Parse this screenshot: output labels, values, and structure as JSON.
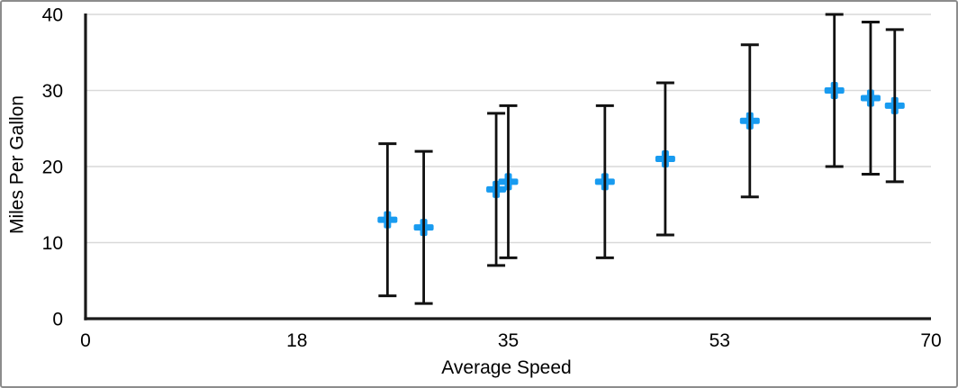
{
  "frame": {
    "background": "#ffffff",
    "border_color": "#8c8c8c"
  },
  "chart_data": {
    "type": "scatter",
    "title": "",
    "xlabel": "Average Speed",
    "ylabel": "Miles Per Gallon",
    "xlim": [
      0,
      70
    ],
    "ylim": [
      0,
      40
    ],
    "x_ticks": [
      {
        "pos": 0,
        "label": "0"
      },
      {
        "pos": 17.5,
        "label": "18"
      },
      {
        "pos": 35,
        "label": "35"
      },
      {
        "pos": 52.5,
        "label": "53"
      },
      {
        "pos": 70,
        "label": "70"
      }
    ],
    "y_ticks": [
      {
        "pos": 0,
        "label": "0"
      },
      {
        "pos": 10,
        "label": "10"
      },
      {
        "pos": 20,
        "label": "20"
      },
      {
        "pos": 30,
        "label": "30"
      },
      {
        "pos": 40,
        "label": "40"
      }
    ],
    "grid": "horizontal-only",
    "legend": "none",
    "axis_color": "#1a1a1a",
    "gridline_color": "#d9d9d9",
    "text_color": "#000000",
    "series": [
      {
        "name": "Miles Per Gallon",
        "marker": "plus",
        "marker_color": "#189BF0",
        "error_bars": {
          "direction": "y",
          "plus": 10,
          "minus": 10,
          "color": "#111111"
        },
        "points": [
          {
            "x": 25,
            "y": 13
          },
          {
            "x": 28,
            "y": 12
          },
          {
            "x": 34,
            "y": 17
          },
          {
            "x": 35,
            "y": 18
          },
          {
            "x": 43,
            "y": 18
          },
          {
            "x": 48,
            "y": 21
          },
          {
            "x": 55,
            "y": 26
          },
          {
            "x": 62,
            "y": 30
          },
          {
            "x": 65,
            "y": 29
          },
          {
            "x": 67,
            "y": 28
          }
        ]
      }
    ]
  }
}
